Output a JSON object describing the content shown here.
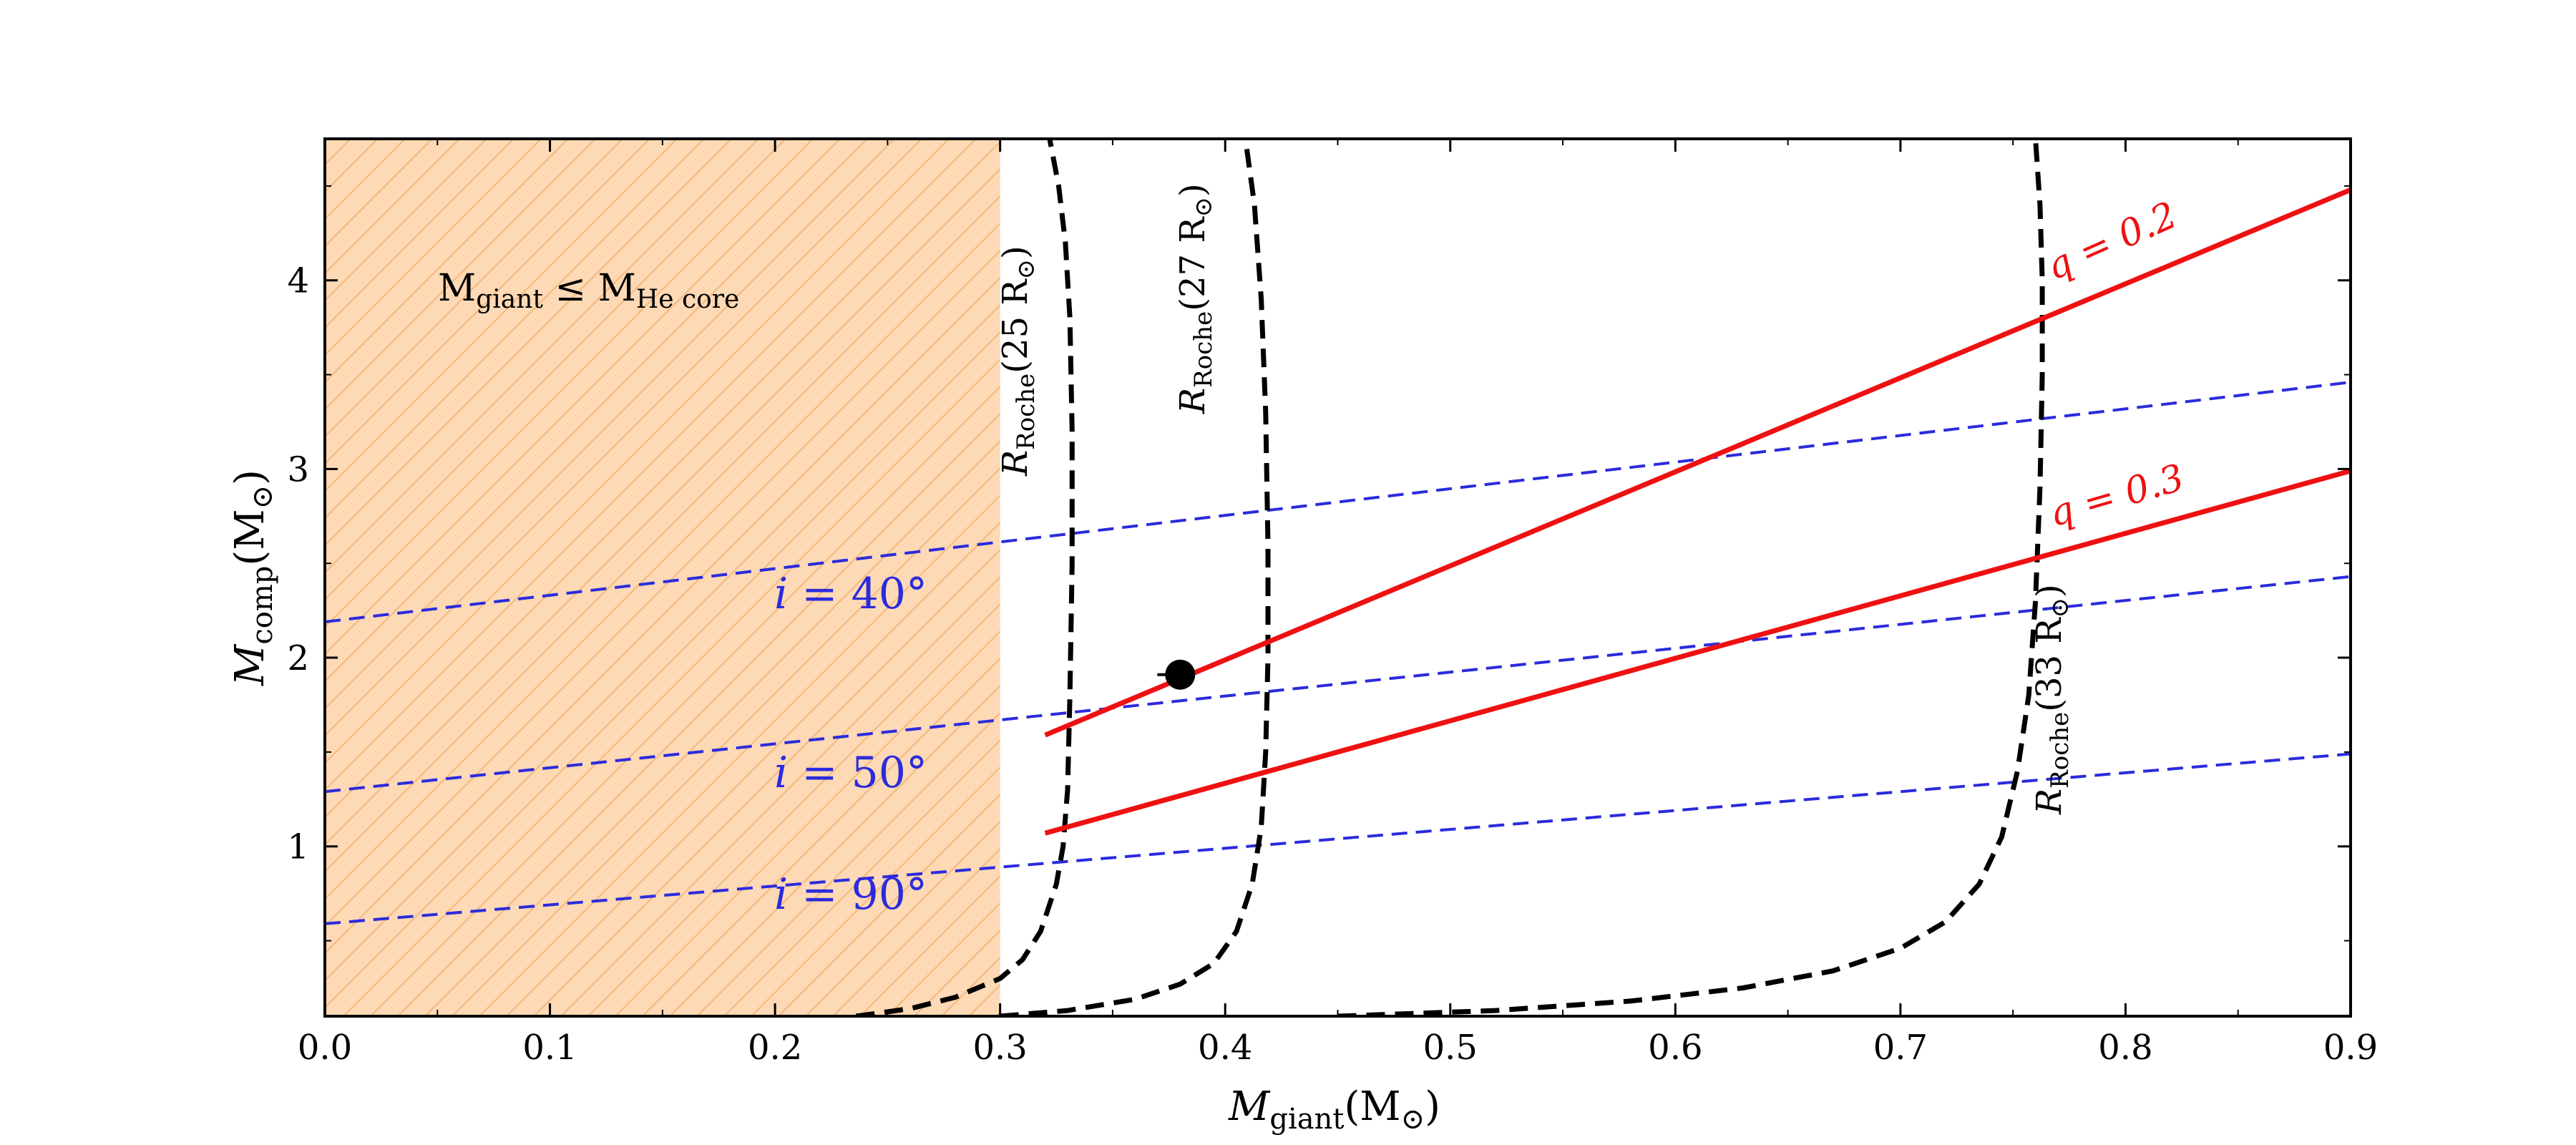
{
  "chart_data": {
    "type": "line",
    "xlabel": {
      "main": "M",
      "sub": "giant",
      "unit": "(M",
      "unit_sub": "⊙",
      "close": ")"
    },
    "ylabel": {
      "main": "M",
      "sub": "comp",
      "unit": "(M",
      "unit_sub": "⊙",
      "close": ")"
    },
    "xlim": [
      0.0,
      0.9
    ],
    "ylim": [
      0.1,
      4.75
    ],
    "xticks": [
      "0.0",
      "0.1",
      "0.2",
      "0.3",
      "0.4",
      "0.5",
      "0.6",
      "0.7",
      "0.8",
      "0.9"
    ],
    "yticks": [
      "1",
      "2",
      "3",
      "4"
    ],
    "xtick_values": [
      0.0,
      0.1,
      0.2,
      0.3,
      0.4,
      0.5,
      0.6,
      0.7,
      0.8,
      0.9
    ],
    "ytick_values": [
      1,
      2,
      3,
      4
    ],
    "shaded_region": {
      "x_range": [
        0.0,
        0.3
      ],
      "color": "#fdd9b5",
      "hatch_color": "#f5b77a",
      "label": {
        "main": "M",
        "sub1": "giant",
        "rel": " ≤ M",
        "sub2": "He core"
      }
    },
    "inclination_series": [
      {
        "name": "i = 40°",
        "label_var": "i",
        "label_val": " = 40°",
        "color": "#2b2bdd",
        "x": [
          0.0,
          0.9
        ],
        "y": [
          2.19,
          3.46
        ]
      },
      {
        "name": "i = 50°",
        "label_var": "i",
        "label_val": " = 50°",
        "color": "#2b2bdd",
        "x": [
          0.0,
          0.9
        ],
        "y": [
          1.29,
          2.43
        ]
      },
      {
        "name": "i = 90°",
        "label_var": "i",
        "label_val": " = 90°",
        "color": "#2b2bdd",
        "x": [
          0.0,
          0.9
        ],
        "y": [
          0.59,
          1.49
        ]
      }
    ],
    "mass_ratio_series": [
      {
        "name": "q = 0.2",
        "label": "q = 0.2",
        "color": "#ee1111",
        "x": [
          0.32,
          0.9
        ],
        "y": [
          1.59,
          4.48
        ]
      },
      {
        "name": "q = 0.3",
        "label": "q = 0.3",
        "color": "#ee1111",
        "x": [
          0.32,
          0.9
        ],
        "y": [
          1.07,
          2.99
        ]
      }
    ],
    "roche_series": [
      {
        "name": "R_Roche(25 R⊙)",
        "label_pre": "R",
        "label_sub": "Roche",
        "label_post": "(25 R",
        "label_sun": "⊙",
        "label_end": ")",
        "color": "#000000",
        "x": [
          0.236,
          0.26,
          0.28,
          0.3,
          0.31,
          0.318,
          0.325,
          0.328,
          0.33,
          0.331,
          0.332,
          0.332,
          0.331,
          0.329,
          0.326,
          0.322
        ],
        "y": [
          0.1,
          0.14,
          0.2,
          0.3,
          0.4,
          0.55,
          0.8,
          1.0,
          1.3,
          1.8,
          2.5,
          3.2,
          3.8,
          4.2,
          4.5,
          4.75
        ]
      },
      {
        "name": "R_Roche(27 R⊙)",
        "label_pre": "R",
        "label_sub": "Roche",
        "label_post": "(27 R",
        "label_sun": "⊙",
        "label_end": ")",
        "color": "#000000",
        "x": [
          0.3,
          0.33,
          0.36,
          0.38,
          0.395,
          0.405,
          0.412,
          0.416,
          0.418,
          0.419,
          0.419,
          0.418,
          0.416,
          0.413,
          0.409
        ],
        "y": [
          0.1,
          0.13,
          0.19,
          0.27,
          0.38,
          0.55,
          0.8,
          1.1,
          1.5,
          2.0,
          2.6,
          3.3,
          3.9,
          4.4,
          4.75
        ]
      },
      {
        "name": "R_Roche(33 R⊙)",
        "label_pre": "R",
        "label_sub": "Roche",
        "label_post": "(33 R",
        "label_sun": "⊙",
        "label_end": ")",
        "color": "#000000",
        "x": [
          0.45,
          0.52,
          0.58,
          0.63,
          0.67,
          0.7,
          0.72,
          0.735,
          0.745,
          0.752,
          0.757,
          0.76,
          0.762,
          0.763,
          0.763,
          0.762,
          0.76
        ],
        "y": [
          0.1,
          0.13,
          0.18,
          0.25,
          0.34,
          0.46,
          0.6,
          0.8,
          1.05,
          1.4,
          1.8,
          2.3,
          2.9,
          3.5,
          4.0,
          4.4,
          4.75
        ]
      }
    ],
    "marker": {
      "name": "best-fit point",
      "x": 0.38,
      "y": 1.91,
      "color": "#000000"
    }
  }
}
